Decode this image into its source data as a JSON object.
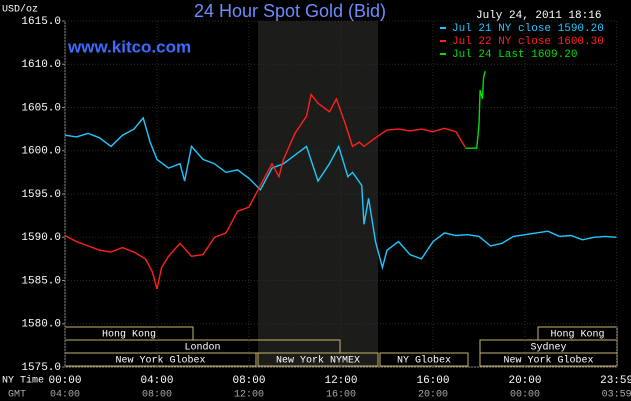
{
  "chart_data": {
    "type": "line",
    "title": "24 Hour Spot Gold (Bid)",
    "timestamp": "July 24, 2011 18:16",
    "watermark": "www.kitco.com",
    "y_label": "USD/oz",
    "x_label": "NY Time",
    "x2_label": "GMT",
    "grid": true,
    "xlim": [
      0,
      24
    ],
    "ylim": [
      1575,
      1615
    ],
    "yticks": [
      {
        "value": 1575,
        "label": "1575.0"
      },
      {
        "value": 1580,
        "label": "1580.0"
      },
      {
        "value": 1585,
        "label": "1585.0"
      },
      {
        "value": 1590,
        "label": "1590.0"
      },
      {
        "value": 1595,
        "label": "1595.0"
      },
      {
        "value": 1600,
        "label": "1600.0"
      },
      {
        "value": 1605,
        "label": "1605.0"
      },
      {
        "value": 1610,
        "label": "1610.0"
      },
      {
        "value": 1615,
        "label": "1615.0"
      }
    ],
    "xticks": [
      {
        "value": 0,
        "label": "00:00"
      },
      {
        "value": 4,
        "label": "04:00"
      },
      {
        "value": 8,
        "label": "08:00"
      },
      {
        "value": 12,
        "label": "12:00"
      },
      {
        "value": 16,
        "label": "16:00"
      },
      {
        "value": 20,
        "label": "20:00"
      },
      {
        "value": 23.983,
        "label": "23:59"
      }
    ],
    "x2_tick_labels": [
      "04:00",
      "08:00",
      "12:00",
      "16:00",
      "20:00",
      "00:00",
      "03:59"
    ],
    "sessions": [
      "Hong Kong",
      "London",
      "New York Globex",
      "New York NYMEX",
      "NY Globex",
      "Sydney",
      "Hong Kong",
      "New York Globex"
    ],
    "series": [
      {
        "name": "Jul 21 NY close 1590.20",
        "color": "#1ec8ff",
        "x": [
          0,
          0.5,
          1,
          1.5,
          2,
          2.5,
          3,
          3.4,
          3.7,
          4,
          4.5,
          5,
          5.2,
          5.5,
          6,
          6.5,
          7,
          7.5,
          8,
          8.5,
          9,
          9.5,
          10,
          10.5,
          11,
          11.5,
          11.9,
          12.3,
          12.5,
          12.9,
          13,
          13.2,
          13.5,
          13.8,
          14,
          14.5,
          15,
          15.5,
          16,
          16.5,
          17,
          17.5,
          18,
          18.5,
          19,
          19.5,
          20,
          20.5,
          21,
          21.5,
          22,
          22.5,
          23,
          23.5,
          23.98
        ],
        "values": [
          1601.8,
          1601.6,
          1602.0,
          1601.5,
          1600.5,
          1601.8,
          1602.5,
          1603.8,
          1601.0,
          1599.0,
          1598.0,
          1598.5,
          1596.5,
          1600.5,
          1599.0,
          1598.5,
          1597.5,
          1597.8,
          1596.8,
          1595.5,
          1598.0,
          1598.5,
          1599.5,
          1600.5,
          1596.5,
          1598.5,
          1600.5,
          1597.0,
          1597.5,
          1596.0,
          1591.5,
          1594.5,
          1589.5,
          1586.5,
          1588.5,
          1589.5,
          1588.0,
          1587.5,
          1589.5,
          1590.5,
          1590.2,
          1590.3,
          1590.1,
          1589.0,
          1589.3,
          1590.1,
          1590.3,
          1590.5,
          1590.7,
          1590.1,
          1590.2,
          1589.7,
          1590.0,
          1590.1,
          1590.0
        ]
      },
      {
        "name": "Jul 22 NY close 1600.30",
        "color": "#ff2020",
        "x": [
          0,
          0.5,
          1,
          1.5,
          2,
          2.5,
          3,
          3.5,
          3.8,
          4,
          4.2,
          4.5,
          5,
          5.5,
          6,
          6.5,
          7,
          7.5,
          8,
          8.5,
          9,
          9.3,
          9.5,
          10,
          10.5,
          10.7,
          11,
          11.5,
          11.8,
          12.2,
          12.5,
          12.8,
          13,
          13.5,
          14,
          14.5,
          15,
          15.5,
          16,
          16.5,
          17,
          17.4
        ],
        "values": [
          1590.2,
          1589.5,
          1589.0,
          1588.5,
          1588.3,
          1588.8,
          1588.3,
          1587.5,
          1586.0,
          1584.0,
          1586.5,
          1587.8,
          1589.3,
          1587.8,
          1588.0,
          1590.0,
          1590.5,
          1593.0,
          1593.5,
          1596.0,
          1598.5,
          1597.0,
          1599.0,
          1602.0,
          1604.0,
          1606.5,
          1605.5,
          1604.5,
          1606.0,
          1603.0,
          1600.5,
          1601.0,
          1600.5,
          1601.5,
          1602.4,
          1602.5,
          1602.3,
          1602.5,
          1602.2,
          1602.6,
          1602.2,
          1600.4
        ]
      },
      {
        "name": "Jul 24 Last 1609.20",
        "color": "#00e000",
        "x": [
          17.4,
          17.9,
          18.0,
          18.05,
          18.15,
          18.2,
          18.27
        ],
        "values": [
          1600.3,
          1600.3,
          1603.0,
          1607.0,
          1606.0,
          1608.5,
          1609.2
        ]
      }
    ]
  }
}
